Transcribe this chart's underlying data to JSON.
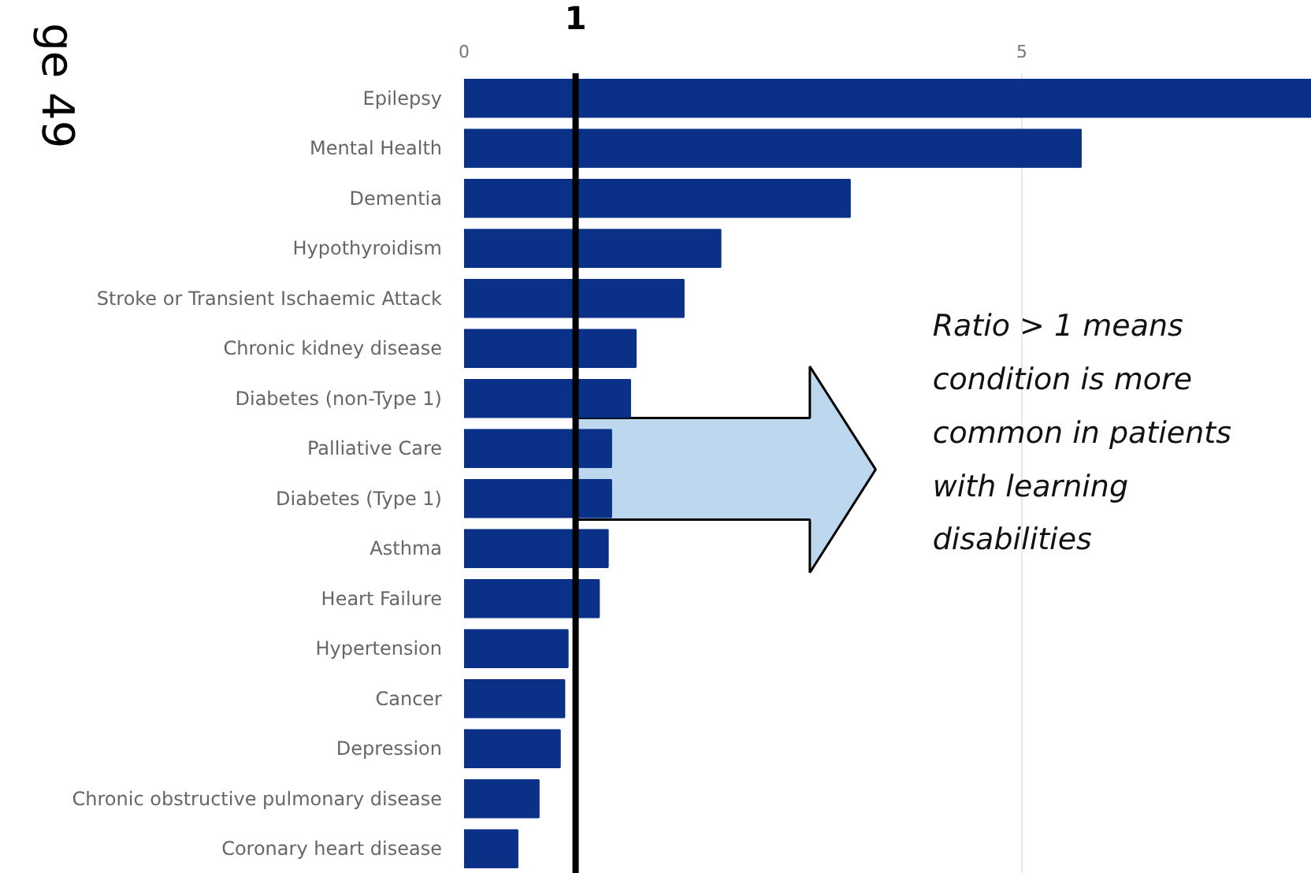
{
  "chart_data": {
    "type": "bar",
    "orientation": "horizontal",
    "categories": [
      "Epilepsy",
      "Mental Health",
      "Dementia",
      "Hypothyroidism",
      "Stroke or Transient Ischaemic Attack",
      "Chronic kidney disease",
      "Diabetes (non-Type 1)",
      "Palliative Care",
      "Diabetes (Type 1)",
      "Asthma",
      "Heart Failure",
      "Hypertension",
      "Cancer",
      "Depression",
      "Chronic obstructive pulmonary disease",
      "Coronary heart disease"
    ],
    "values": [
      7.6,
      5.53,
      3.46,
      2.3,
      1.97,
      1.54,
      1.49,
      1.32,
      1.32,
      1.29,
      1.21,
      0.93,
      0.9,
      0.86,
      0.67,
      0.48
    ],
    "color": "#0a3187",
    "xlim": [
      0,
      7.6
    ],
    "xticks": [
      0,
      5
    ],
    "grid": "x",
    "ref_lines": [
      {
        "axis": "x",
        "value": 1,
        "label": "1",
        "color": "#000000"
      }
    ],
    "annotations": [
      "ge 49",
      "Ratio > 1 means condition is more common in patients with learning disabilities"
    ]
  }
}
